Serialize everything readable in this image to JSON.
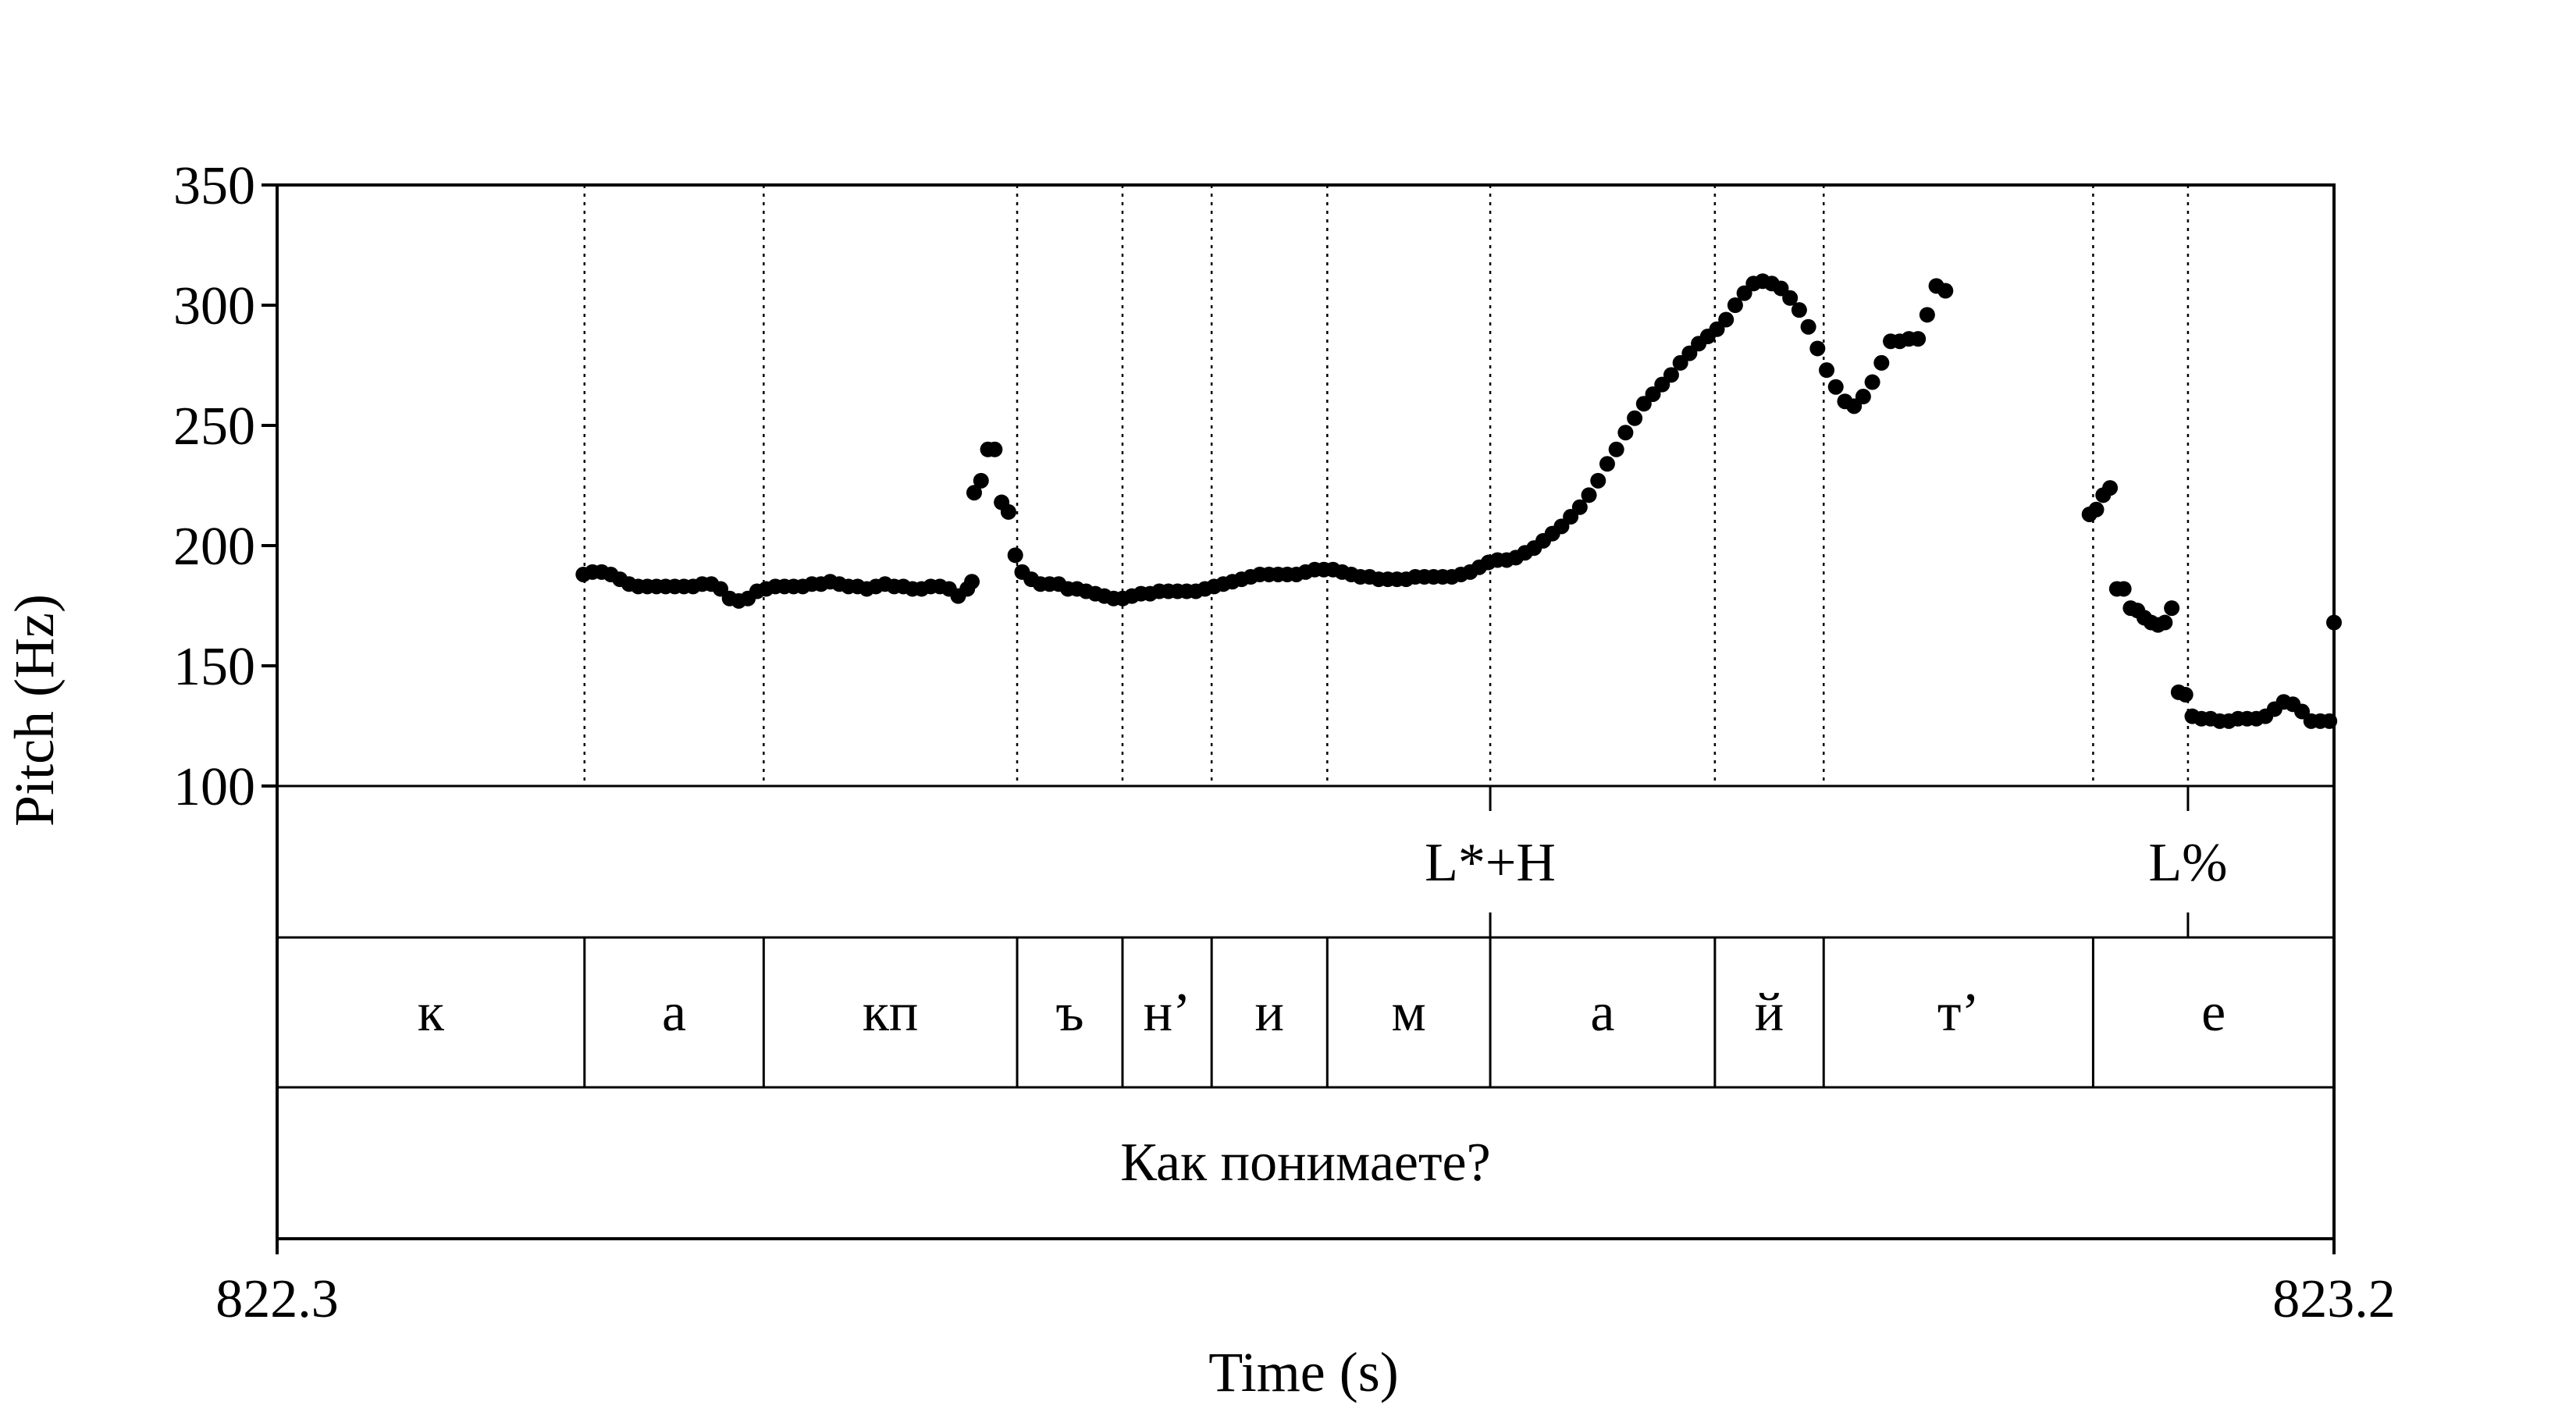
{
  "chart_data": {
    "type": "scatter",
    "title": "",
    "xlabel": "Time (s)",
    "ylabel": "Pitch (Hz)",
    "xlim": [
      822.3,
      823.2
    ],
    "ylim": [
      100,
      350
    ],
    "yticks": [
      "100",
      "150",
      "200",
      "250",
      "300",
      "350"
    ],
    "xticks": [
      "822.3",
      "823.2"
    ],
    "grid": false,
    "boundaries": [
      822.4345,
      822.5129,
      822.6238,
      822.6699,
      822.7089,
      822.7595,
      822.8308,
      822.9291,
      822.9767,
      823.0946,
      823.1361
    ],
    "tiers": {
      "tones": [
        {
          "time": 822.8308,
          "label": "L*+H"
        },
        {
          "time": 823.1361,
          "label": "L%"
        }
      ],
      "segments": [
        {
          "start": 822.3,
          "end": 822.4345,
          "label": "к"
        },
        {
          "start": 822.4345,
          "end": 822.5129,
          "label": "а"
        },
        {
          "start": 822.5129,
          "end": 822.6238,
          "label": "кп"
        },
        {
          "start": 822.6238,
          "end": 822.6699,
          "label": "ъ"
        },
        {
          "start": 822.6699,
          "end": 822.7089,
          "label": "н’"
        },
        {
          "start": 822.7089,
          "end": 822.7595,
          "label": "и"
        },
        {
          "start": 822.7595,
          "end": 822.8308,
          "label": "м"
        },
        {
          "start": 822.8308,
          "end": 822.9291,
          "label": "а"
        },
        {
          "start": 822.9291,
          "end": 822.9767,
          "label": "й"
        },
        {
          "start": 822.9767,
          "end": 823.0946,
          "label": "т’"
        },
        {
          "start": 823.0946,
          "end": 823.2,
          "label": "е"
        }
      ],
      "sentence": {
        "start": 822.3,
        "end": 823.2,
        "label": "Как понимаете?"
      }
    },
    "series": [
      {
        "points": [
          [
            822.434,
            188
          ],
          [
            822.438,
            189
          ],
          [
            822.442,
            189
          ],
          [
            822.446,
            188
          ],
          [
            822.45,
            186
          ],
          [
            822.454,
            184
          ],
          [
            822.458,
            183
          ],
          [
            822.462,
            183
          ],
          [
            822.466,
            183
          ],
          [
            822.47,
            183
          ],
          [
            822.474,
            183
          ],
          [
            822.478,
            183
          ],
          [
            822.482,
            183
          ],
          [
            822.486,
            184
          ],
          [
            822.49,
            184
          ],
          [
            822.494,
            182
          ],
          [
            822.498,
            178
          ],
          [
            822.502,
            177
          ],
          [
            822.506,
            178
          ],
          [
            822.51,
            181
          ],
          [
            822.514,
            182
          ],
          [
            822.518,
            183
          ],
          [
            822.522,
            183
          ],
          [
            822.526,
            183
          ],
          [
            822.53,
            183
          ],
          [
            822.534,
            184
          ],
          [
            822.538,
            184
          ],
          [
            822.542,
            185
          ],
          [
            822.546,
            184
          ],
          [
            822.55,
            183
          ],
          [
            822.554,
            183
          ],
          [
            822.558,
            182
          ],
          [
            822.562,
            183
          ],
          [
            822.566,
            184
          ],
          [
            822.57,
            183
          ],
          [
            822.574,
            183
          ],
          [
            822.578,
            182
          ],
          [
            822.582,
            182
          ],
          [
            822.586,
            183
          ],
          [
            822.59,
            183
          ],
          [
            822.594,
            182
          ],
          [
            822.598,
            179
          ],
          [
            822.602,
            182
          ],
          [
            822.604,
            185
          ],
          [
            822.605,
            222
          ],
          [
            822.608,
            227
          ],
          [
            822.611,
            240
          ],
          [
            822.614,
            240
          ],
          [
            822.617,
            218
          ],
          [
            822.62,
            214
          ],
          [
            822.623,
            196
          ],
          [
            822.626,
            189
          ],
          [
            822.63,
            186
          ],
          [
            822.634,
            184
          ],
          [
            822.638,
            184
          ],
          [
            822.642,
            184
          ],
          [
            822.646,
            182
          ],
          [
            822.65,
            182
          ],
          [
            822.654,
            181
          ],
          [
            822.658,
            180
          ],
          [
            822.662,
            179
          ],
          [
            822.666,
            178
          ],
          [
            822.67,
            178
          ],
          [
            822.674,
            179
          ],
          [
            822.678,
            180
          ],
          [
            822.682,
            180
          ],
          [
            822.686,
            181
          ],
          [
            822.69,
            181
          ],
          [
            822.694,
            181
          ],
          [
            822.698,
            181
          ],
          [
            822.702,
            181
          ],
          [
            822.706,
            182
          ],
          [
            822.71,
            183
          ],
          [
            822.714,
            184
          ],
          [
            822.718,
            185
          ],
          [
            822.722,
            186
          ],
          [
            822.726,
            187
          ],
          [
            822.73,
            188
          ],
          [
            822.734,
            188
          ],
          [
            822.738,
            188
          ],
          [
            822.742,
            188
          ],
          [
            822.746,
            188
          ],
          [
            822.75,
            189
          ],
          [
            822.754,
            190
          ],
          [
            822.758,
            190
          ],
          [
            822.762,
            190
          ],
          [
            822.766,
            189
          ],
          [
            822.77,
            188
          ],
          [
            822.774,
            187
          ],
          [
            822.778,
            187
          ],
          [
            822.782,
            186
          ],
          [
            822.786,
            186
          ],
          [
            822.79,
            186
          ],
          [
            822.794,
            186
          ],
          [
            822.798,
            187
          ],
          [
            822.802,
            187
          ],
          [
            822.806,
            187
          ],
          [
            822.81,
            187
          ],
          [
            822.814,
            187
          ],
          [
            822.818,
            188
          ],
          [
            822.822,
            189
          ],
          [
            822.826,
            191
          ],
          [
            822.83,
            193
          ],
          [
            822.834,
            194
          ],
          [
            822.838,
            194
          ],
          [
            822.842,
            195
          ],
          [
            822.846,
            197
          ],
          [
            822.85,
            199
          ],
          [
            822.854,
            202
          ],
          [
            822.858,
            205
          ],
          [
            822.862,
            208
          ],
          [
            822.866,
            212
          ],
          [
            822.87,
            216
          ],
          [
            822.874,
            221
          ],
          [
            822.878,
            227
          ],
          [
            822.882,
            234
          ],
          [
            822.886,
            240
          ],
          [
            822.89,
            247
          ],
          [
            822.894,
            253
          ],
          [
            822.898,
            259
          ],
          [
            822.902,
            263
          ],
          [
            822.906,
            267
          ],
          [
            822.91,
            271
          ],
          [
            822.914,
            276
          ],
          [
            822.918,
            280
          ],
          [
            822.922,
            284
          ],
          [
            822.926,
            287
          ],
          [
            822.93,
            290
          ],
          [
            822.934,
            294
          ],
          [
            822.938,
            300
          ],
          [
            822.942,
            305
          ],
          [
            822.946,
            309
          ],
          [
            822.95,
            310
          ],
          [
            822.954,
            309
          ],
          [
            822.958,
            307
          ],
          [
            822.962,
            303
          ],
          [
            822.966,
            298
          ],
          [
            822.97,
            291
          ],
          [
            822.974,
            282
          ],
          [
            822.978,
            273
          ],
          [
            822.982,
            266
          ],
          [
            822.986,
            260
          ],
          [
            822.99,
            258
          ],
          [
            822.994,
            262
          ],
          [
            822.998,
            268
          ],
          [
            823.002,
            276
          ],
          [
            823.006,
            285
          ],
          [
            823.01,
            285
          ],
          [
            823.014,
            286
          ],
          [
            823.018,
            286
          ],
          [
            823.022,
            296
          ],
          [
            823.026,
            308
          ],
          [
            823.03,
            306
          ],
          [
            823.093,
            213
          ],
          [
            823.096,
            215
          ],
          [
            823.099,
            221
          ],
          [
            823.102,
            224
          ],
          [
            823.105,
            182
          ],
          [
            823.108,
            182
          ],
          [
            823.111,
            174
          ],
          [
            823.114,
            173
          ],
          [
            823.117,
            170
          ],
          [
            823.12,
            168
          ],
          [
            823.123,
            167
          ],
          [
            823.126,
            168
          ],
          [
            823.129,
            174
          ],
          [
            823.132,
            139
          ],
          [
            823.135,
            138
          ],
          [
            823.138,
            129
          ],
          [
            823.142,
            128
          ],
          [
            823.146,
            128
          ],
          [
            823.15,
            127
          ],
          [
            823.154,
            127
          ],
          [
            823.158,
            128
          ],
          [
            823.162,
            128
          ],
          [
            823.166,
            128
          ],
          [
            823.17,
            129
          ],
          [
            823.174,
            132
          ],
          [
            823.178,
            135
          ],
          [
            823.182,
            134
          ],
          [
            823.186,
            131
          ],
          [
            823.19,
            127
          ],
          [
            823.194,
            127
          ],
          [
            823.198,
            127
          ],
          [
            823.2,
            168
          ]
        ]
      }
    ]
  }
}
